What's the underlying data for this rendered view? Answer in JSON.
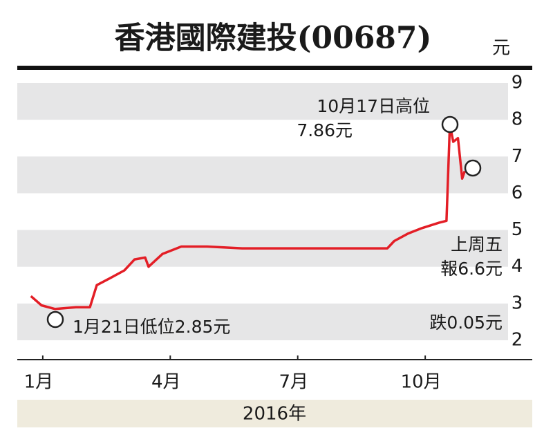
{
  "chart_data": {
    "type": "line",
    "title": "香港國際建投(00687)",
    "unit": "元",
    "x_label": "2016年",
    "x": [
      0.72,
      0.97,
      1.29,
      1.78,
      2.11,
      2.27,
      2.6,
      2.92,
      3.16,
      3.41,
      3.49,
      3.82,
      4.26,
      4.87,
      5.69,
      6.83,
      8.13,
      9.11,
      9.27,
      9.59,
      9.92,
      10.33,
      10.5,
      10.58,
      10.66,
      10.77,
      10.87,
      10.93
    ],
    "values": [
      3.2,
      2.95,
      2.85,
      2.9,
      2.9,
      3.5,
      3.7,
      3.9,
      4.2,
      4.25,
      4.0,
      4.35,
      4.55,
      4.55,
      4.5,
      4.5,
      4.5,
      4.5,
      4.7,
      4.9,
      5.05,
      5.2,
      5.25,
      7.86,
      7.4,
      7.5,
      6.4,
      6.6
    ],
    "color": "#e31e26",
    "xlim": [
      0.4,
      11.95
    ],
    "xticks": [
      {
        "value": 1,
        "label": "1月"
      },
      {
        "value": 4,
        "label": "4月"
      },
      {
        "value": 7,
        "label": "7月"
      },
      {
        "value": 10,
        "label": "10月"
      }
    ],
    "ylim": [
      2,
      9
    ],
    "yticks": [
      2,
      3,
      4,
      5,
      6,
      7,
      8,
      9
    ],
    "band_color": "#e6e6e7",
    "annotations": {
      "high_date": "10月17日高位",
      "high_value": "7.86元",
      "low": "1月21日低位2.85元",
      "last_day": "上周五",
      "last_value": "報6.6元",
      "change": "跌0.05元"
    }
  }
}
